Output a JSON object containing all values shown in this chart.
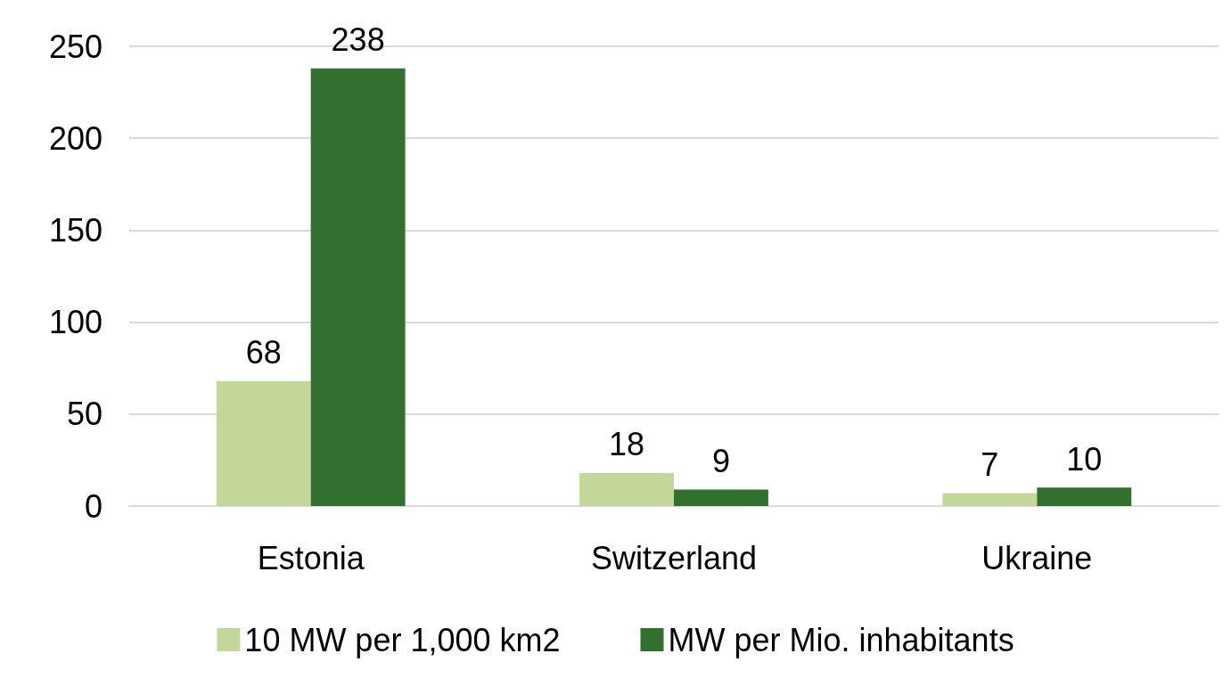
{
  "chart_data": {
    "type": "bar",
    "categories": [
      "Estonia",
      "Switzerland",
      "Ukraine"
    ],
    "series": [
      {
        "name": "10 MW per 1,000 km2",
        "color": "#c4d79b",
        "values": [
          68,
          18,
          7
        ]
      },
      {
        "name": "MW per Mio. inhabitants",
        "color": "#31702f",
        "values": [
          238,
          9,
          10
        ]
      }
    ],
    "ylim": [
      0,
      250
    ],
    "yticks": [
      0,
      50,
      100,
      150,
      200,
      250
    ],
    "grid": "y",
    "legend": "bottom",
    "data_labels": true
  }
}
